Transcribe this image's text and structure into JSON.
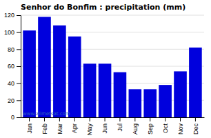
{
  "chart_data": {
    "type": "bar",
    "title": "Senhor do Bonfim : precipitation (mm)",
    "categories": [
      "Jan",
      "Feb",
      "Mar",
      "Apr",
      "May",
      "Jun",
      "Jul",
      "Aug",
      "Sep",
      "Oct",
      "Nov",
      "Dec"
    ],
    "values": [
      102,
      118,
      108,
      95,
      63,
      63,
      53,
      33,
      33,
      38,
      54,
      82
    ],
    "color": "#0000DD",
    "ylim": [
      0,
      120
    ],
    "yticks": [
      0,
      20,
      40,
      60,
      80,
      100,
      120
    ],
    "grid": true,
    "annotation": "www.allmetsat.com"
  }
}
